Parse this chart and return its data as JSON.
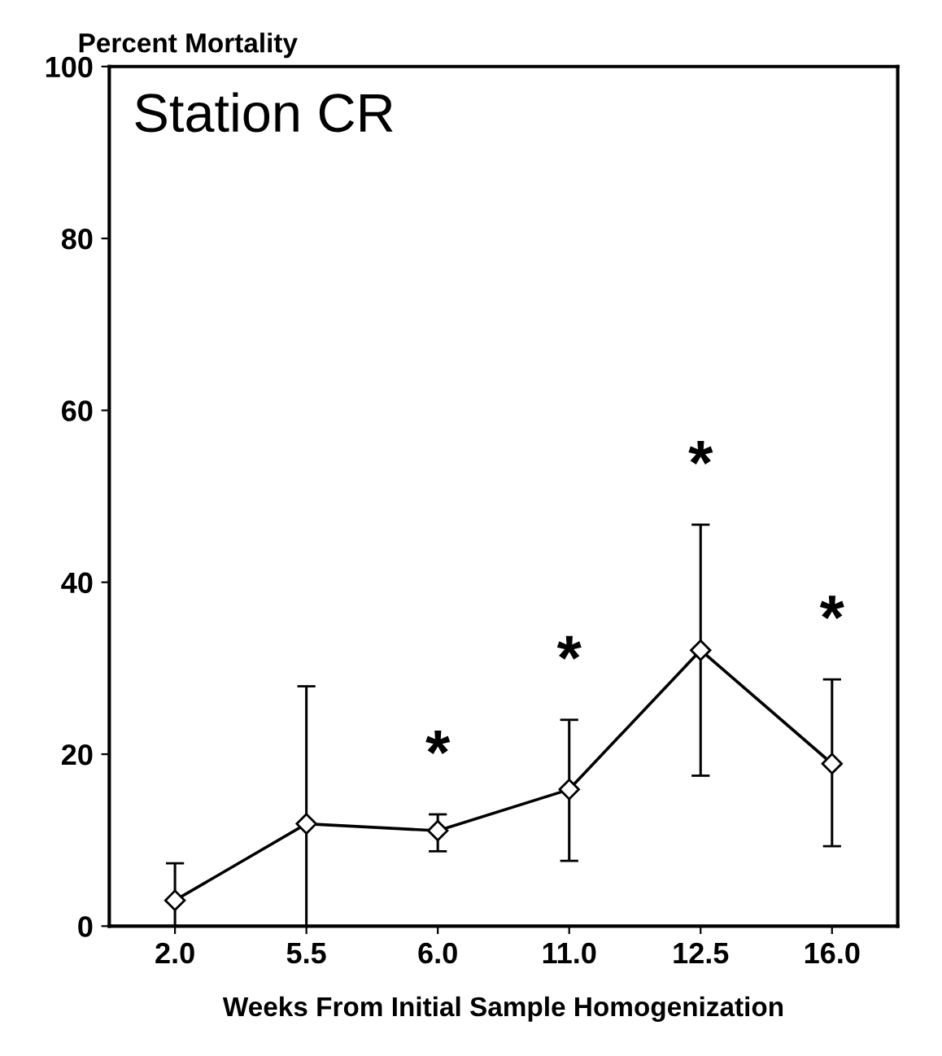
{
  "chart_data": {
    "type": "line",
    "title": "Station CR",
    "ylabel": "Percent Mortality",
    "xlabel": "Weeks From Initial Sample Homogenization",
    "categories": [
      "2.0",
      "5.5",
      "6.0",
      "11.0",
      "12.5",
      "16.0"
    ],
    "series": [
      {
        "color": "#000000",
        "values": [
          3.0,
          11.9,
          11.1,
          15.9,
          32.1,
          18.9
        ],
        "errors": [
          [
            0,
            7.3
          ],
          [
            0,
            27.9
          ],
          [
            8.7,
            13.0
          ],
          [
            7.6,
            24.0
          ],
          [
            17.5,
            46.7
          ],
          [
            9.3,
            28.7
          ]
        ]
      }
    ],
    "ylim": [
      0,
      100
    ],
    "yticks": [
      0,
      20,
      40,
      60,
      80,
      100
    ],
    "grid": false,
    "legend": false,
    "marker": "diamond",
    "line_style": "solid",
    "annotations": [
      {
        "text": "*",
        "x": "6.0",
        "y": 13.0
      },
      {
        "text": "*",
        "x": "11.0",
        "y": 24.0
      },
      {
        "text": "*",
        "x": "12.5",
        "y": 46.7
      },
      {
        "text": "*",
        "x": "16.0",
        "y": 28.7
      }
    ]
  }
}
